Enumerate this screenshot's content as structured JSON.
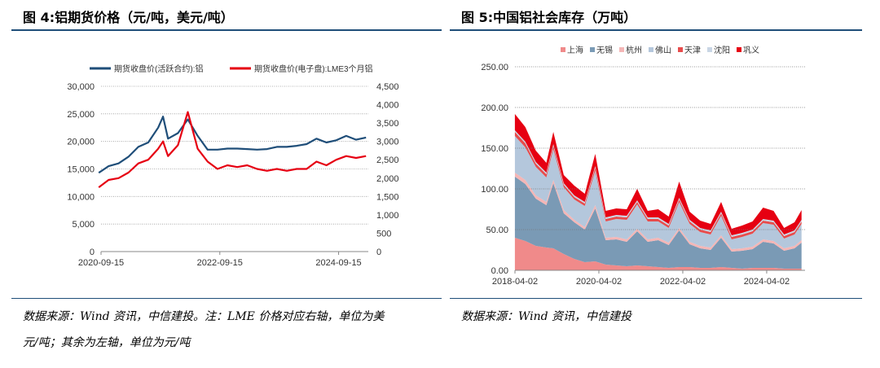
{
  "left": {
    "title": "图 4:铝期货价格（元/吨，美元/吨）",
    "source_line1": "数据来源：Wind 资讯，中信建投。注：LME 价格对应右轴，单位为美",
    "source_line2": "元/吨；其余为左轴，单位为元/吨"
  },
  "right": {
    "title": "图 5:中国铝社会库存（万吨）",
    "source_line1": "数据来源：Wind 资讯，中信建投"
  },
  "colors": {
    "rule": "#1f4e79",
    "shfe": "#1f4e79",
    "lme": "#e60012"
  },
  "chart_data": [
    {
      "type": "line",
      "title": "",
      "legend_position": "top",
      "grid": "dotted horizontal",
      "x_ticks": [
        "2020-09-15",
        "2022-09-15",
        "2024-09-15"
      ],
      "x_range": [
        "2020-09-15",
        "2025-03-15"
      ],
      "y_left": {
        "range": [
          0,
          30000
        ],
        "ticks": [
          "0",
          "5,000",
          "10,000",
          "15,000",
          "20,000",
          "25,000",
          "30,000"
        ]
      },
      "y_right": {
        "range": [
          0,
          4500
        ],
        "ticks": [
          "0",
          "500",
          "1,000",
          "1,500",
          "2,000",
          "2,500",
          "3,000",
          "3,500",
          "4,000",
          "4,500"
        ]
      },
      "x": [
        "2020-09",
        "2020-11",
        "2021-01",
        "2021-03",
        "2021-05",
        "2021-07",
        "2021-09",
        "2021-10",
        "2021-11",
        "2022-01",
        "2022-03",
        "2022-05",
        "2022-07",
        "2022-09",
        "2022-11",
        "2023-01",
        "2023-03",
        "2023-05",
        "2023-07",
        "2023-09",
        "2023-11",
        "2024-01",
        "2024-03",
        "2024-05",
        "2024-07",
        "2024-09",
        "2024-11",
        "2025-01",
        "2025-03"
      ],
      "series": [
        {
          "name": "期货收盘价(活跃合约):铝",
          "axis": "left",
          "values": [
            14300,
            15500,
            16000,
            17200,
            19000,
            19800,
            22500,
            24500,
            20500,
            21500,
            24000,
            21000,
            18500,
            18500,
            18700,
            18700,
            18600,
            18500,
            18600,
            19000,
            19000,
            19200,
            19500,
            20500,
            19800,
            20200,
            21000,
            20300,
            20700
          ]
        },
        {
          "name": "期货收盘价(电子盘):LME3个月铝",
          "axis": "right",
          "values": [
            1750,
            1950,
            2000,
            2150,
            2400,
            2500,
            2800,
            3000,
            2600,
            2900,
            3800,
            2800,
            2450,
            2250,
            2350,
            2300,
            2350,
            2250,
            2200,
            2250,
            2200,
            2250,
            2250,
            2450,
            2350,
            2500,
            2600,
            2550,
            2600
          ]
        }
      ]
    },
    {
      "type": "area",
      "stacked": true,
      "title": "",
      "legend_position": "top",
      "grid": "dotted horizontal",
      "x_ticks": [
        "2018-04-02",
        "2020-04-02",
        "2022-04-02",
        "2024-04-02"
      ],
      "x_range": [
        "2018-04-02",
        "2025-03-01"
      ],
      "y_range": [
        0,
        250
      ],
      "y_ticks": [
        "0.00",
        "50.00",
        "100.00",
        "150.00",
        "200.00",
        "250.00"
      ],
      "x": [
        "2018-04",
        "2018-07",
        "2018-10",
        "2019-01",
        "2019-03",
        "2019-06",
        "2019-09",
        "2019-12",
        "2020-03",
        "2020-06",
        "2020-09",
        "2020-12",
        "2021-03",
        "2021-06",
        "2021-09",
        "2021-12",
        "2022-03",
        "2022-06",
        "2022-09",
        "2022-12",
        "2023-03",
        "2023-06",
        "2023-09",
        "2023-12",
        "2024-03",
        "2024-06",
        "2024-09",
        "2024-12",
        "2025-02"
      ],
      "series": [
        {
          "name": "上海",
          "color": "#f08a8a",
          "values": [
            40,
            36,
            30,
            28,
            27,
            20,
            14,
            10,
            11,
            7,
            6,
            5,
            6,
            5,
            4,
            3,
            4,
            4,
            3,
            3,
            4,
            3,
            2,
            3,
            3,
            3,
            2,
            2,
            2
          ]
        },
        {
          "name": "无锡",
          "color": "#7a9ab5",
          "values": [
            75,
            70,
            58,
            52,
            80,
            50,
            45,
            40,
            65,
            30,
            32,
            30,
            42,
            30,
            33,
            28,
            45,
            28,
            24,
            22,
            36,
            20,
            22,
            23,
            32,
            30,
            22,
            25,
            32
          ]
        },
        {
          "name": "杭州",
          "color": "#f4b6b6",
          "values": [
            5,
            5,
            4,
            4,
            4,
            4,
            3,
            3,
            4,
            3,
            3,
            3,
            3,
            3,
            3,
            3,
            3,
            3,
            3,
            3,
            3,
            3,
            3,
            3,
            3,
            3,
            3,
            3,
            3
          ]
        },
        {
          "name": "佛山",
          "color": "#b4c7dc",
          "values": [
            45,
            40,
            35,
            30,
            38,
            28,
            25,
            26,
            42,
            20,
            22,
            24,
            30,
            22,
            20,
            18,
            32,
            22,
            17,
            16,
            24,
            12,
            14,
            16,
            20,
            20,
            12,
            14,
            20
          ]
        },
        {
          "name": "天津",
          "color": "#e74c4c",
          "values": [
            5,
            5,
            4,
            4,
            4,
            3,
            3,
            3,
            4,
            3,
            3,
            3,
            3,
            3,
            3,
            3,
            3,
            3,
            3,
            3,
            3,
            3,
            3,
            3,
            3,
            3,
            3,
            3,
            3
          ]
        },
        {
          "name": "沈阳",
          "color": "#c9d6e5",
          "values": [
            2,
            2,
            2,
            2,
            2,
            2,
            2,
            2,
            2,
            2,
            2,
            2,
            2,
            2,
            2,
            2,
            2,
            2,
            2,
            2,
            2,
            2,
            2,
            2,
            2,
            2,
            2,
            2,
            2
          ]
        },
        {
          "name": "巩义",
          "color": "#e60012",
          "values": [
            20,
            18,
            14,
            12,
            15,
            10,
            12,
            10,
            15,
            8,
            8,
            8,
            14,
            8,
            10,
            9,
            20,
            10,
            9,
            8,
            12,
            8,
            9,
            10,
            14,
            12,
            8,
            10,
            12
          ]
        }
      ]
    }
  ]
}
